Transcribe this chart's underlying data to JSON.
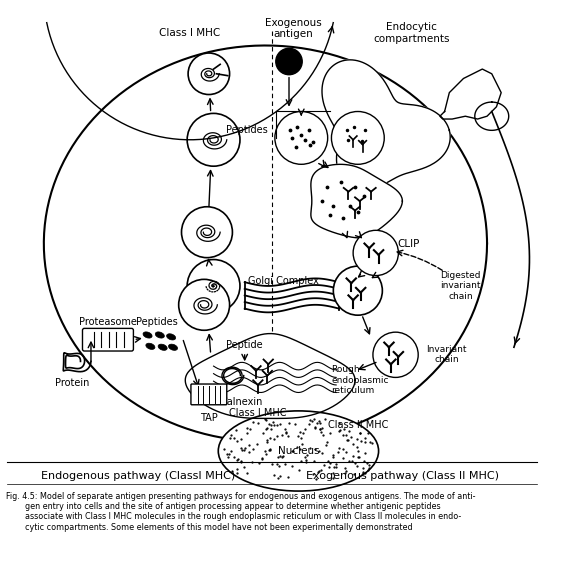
{
  "fig_caption_line1": "Fig. 4.5: Model of separate antigen presenting pathways for endogenous and exogenous antigens. The mode of anti-",
  "fig_caption_line2": "gen entry into cells and the site of antigen processing appear to determine whether antigenic peptides",
  "fig_caption_line3": "associate with Class I MHC molecules in the rough endoplasmic reticulum or with Class II molecules in endo-",
  "fig_caption_line4": "cytic compartments. Some elements of this model have not been experimentally demonstrated",
  "bottom_label_left": "Endogenous pathway (ClassI MHC)",
  "bottom_label_right": "Exogenous pathway (Class II MHC)",
  "bg_color": "#ffffff"
}
